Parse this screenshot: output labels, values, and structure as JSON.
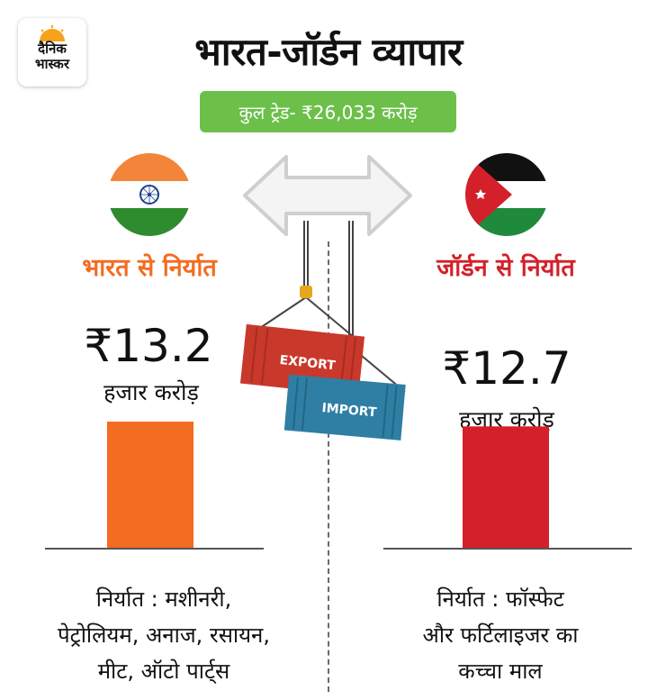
{
  "brand": {
    "line1": "दैनिक",
    "line2": "भास्कर"
  },
  "header": {
    "title": "भारत-जॉर्डन व्यापार",
    "total_trade": "कुल ट्रेड- ₹26,033 करोड़"
  },
  "colors": {
    "india": "#f26c21",
    "jordan": "#d4202a",
    "pill": "#6cc04a",
    "export_container": "#c8392b",
    "import_container": "#2e7fa3"
  },
  "containers": {
    "export_label": "EXPORT",
    "import_label": "IMPORT"
  },
  "india": {
    "heading": "भारत से निर्यात",
    "value_text": "₹13.2",
    "unit": "हजार करोड़",
    "desc_lines": [
      "निर्यात : मशीनरी,",
      "पेट्रोलियम, अनाज, रसायन,",
      "मीट, ऑटो पार्ट्स"
    ]
  },
  "jordan": {
    "heading": "जॉर्डन से निर्यात",
    "value_text": "₹12.7",
    "unit": "हजार करोड़",
    "desc_lines": [
      "निर्यात : फॉस्फेट",
      "और फर्टिलाइजर का",
      "कच्चा माल"
    ]
  },
  "chart_data": {
    "type": "bar",
    "categories": [
      "भारत से निर्यात",
      "जॉर्डन से निर्यात"
    ],
    "values": [
      13.2,
      12.7
    ],
    "unit": "हजार करोड़",
    "colors": [
      "#f26c21",
      "#d4202a"
    ]
  }
}
